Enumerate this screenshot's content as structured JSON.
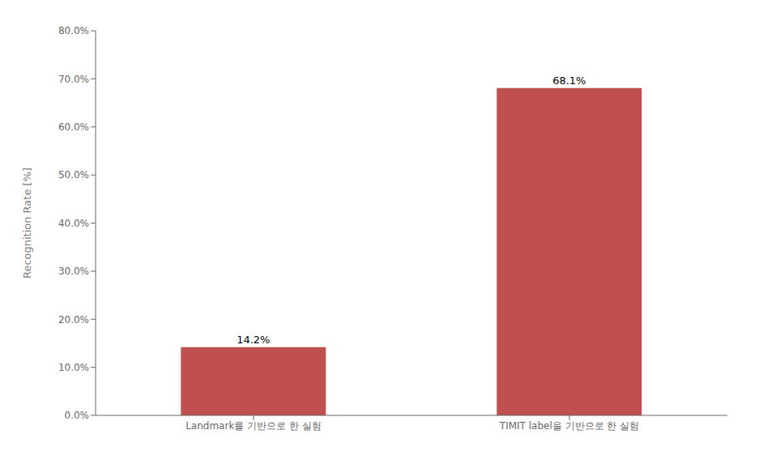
{
  "chart_data": {
    "type": "bar",
    "categories": [
      "Landmark를 기반으로 한 실험",
      "TIMIT label을 기반으로 한 실험"
    ],
    "values": [
      14.2,
      68.1
    ],
    "value_labels": [
      "14.2%",
      "68.1%"
    ],
    "data_labels": true,
    "color": "#c0504d",
    "ylabel": "Recognition Rate [%]",
    "ylim": [
      0,
      80
    ],
    "yticks": [
      {
        "value": 0,
        "label": "0.0%"
      },
      {
        "value": 10,
        "label": "10.0%"
      },
      {
        "value": 20,
        "label": "20.0%"
      },
      {
        "value": 30,
        "label": "30.0%"
      },
      {
        "value": 40,
        "label": "40.0%"
      },
      {
        "value": 50,
        "label": "50.0%"
      },
      {
        "value": 60,
        "label": "60.0%"
      },
      {
        "value": 70,
        "label": "70.0%"
      },
      {
        "value": 80,
        "label": "80.0%"
      }
    ],
    "grid": false
  }
}
